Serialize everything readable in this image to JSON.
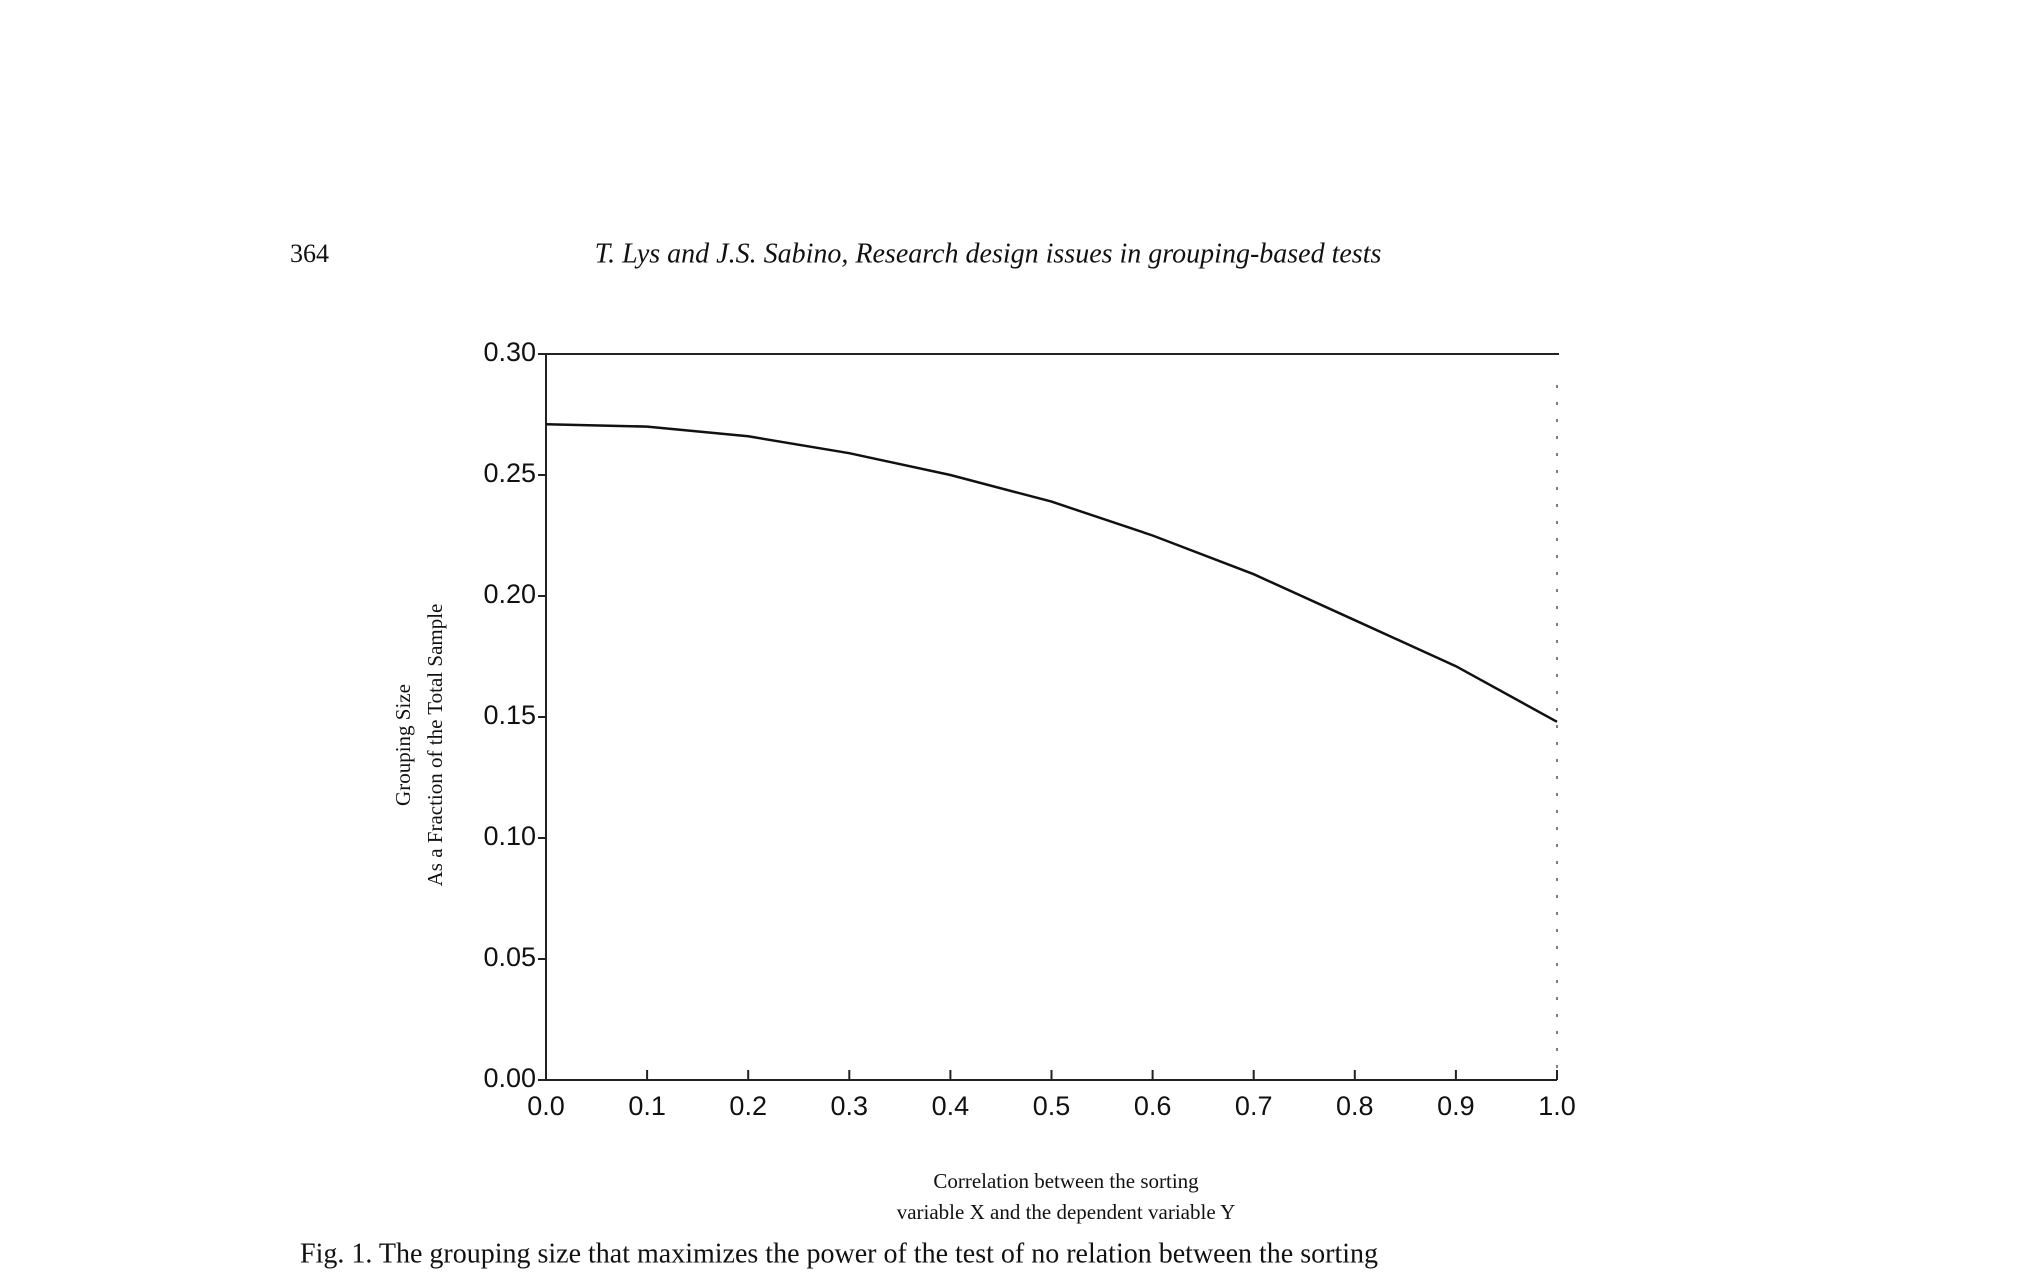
{
  "page_number": "364",
  "running_head": "T. Lys and J.S. Sabino, Research design issues in grouping-based tests",
  "caption": "Fig. 1. The grouping size that maximizes the power of the test of no relation between the sorting",
  "chart_data": {
    "type": "line",
    "y_label": [
      "Grouping Size",
      "As a Fraction of the Total Sample"
    ],
    "x_label": [
      "Correlation between the sorting",
      "variable X and the dependent variable Y"
    ],
    "x": [
      0,
      0.1,
      0.2,
      0.3,
      0.4,
      0.5,
      0.6,
      0.7,
      0.8,
      0.9,
      1.0
    ],
    "values": [
      0.271,
      0.27,
      0.266,
      0.259,
      0.25,
      0.239,
      0.225,
      0.209,
      0.19,
      0.171,
      0.148
    ],
    "color": "#111111",
    "xlim": [
      0,
      1.0
    ],
    "ylim": [
      0,
      0.3
    ],
    "xticks": [
      {
        "value": 0,
        "label": "0.0"
      },
      0.1,
      0.2,
      0.3,
      0.4,
      0.5,
      0.6,
      0.7,
      0.8,
      0.9,
      {
        "value": 1.0,
        "label": "1.0"
      }
    ],
    "yticks": [
      {
        "value": 0,
        "label": "0.00"
      },
      0.05,
      {
        "value": 0.1,
        "label": "0.10"
      },
      0.15,
      {
        "value": 0.2,
        "label": "0.20"
      },
      0.25,
      {
        "value": 0.3,
        "label": "0.30"
      }
    ],
    "grid": false
  }
}
